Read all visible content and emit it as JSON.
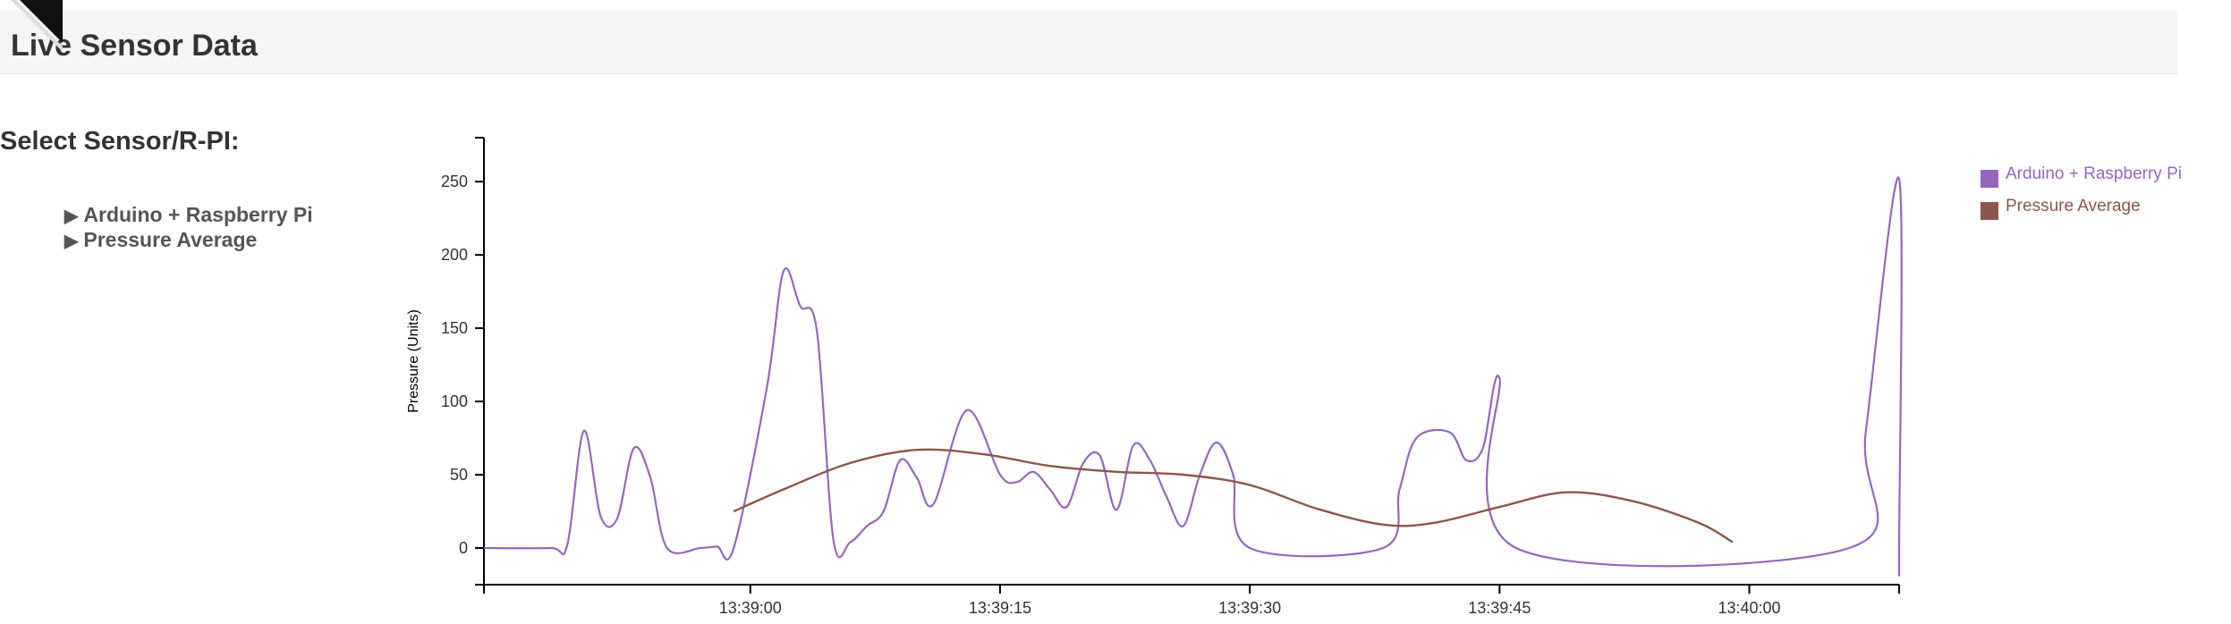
{
  "header": {
    "title": "Live Sensor Data"
  },
  "sidebar": {
    "title": "Select Sensor/R-PI:",
    "items": [
      {
        "label": "Arduino + Raspberry Pi"
      },
      {
        "label": "Pressure Average"
      }
    ]
  },
  "colors": {
    "arduino": "#9467bd",
    "average": "#8c564b"
  },
  "chart_data": {
    "type": "line",
    "title": "",
    "xlabel": "",
    "ylabel": "Pressure (Units)",
    "xlim": [
      "13:38:44",
      "13:40:09"
    ],
    "ylim": [
      -25,
      280
    ],
    "y_ticks": [
      0,
      50,
      100,
      150,
      200,
      250
    ],
    "x_ticks": [
      "13:39:00",
      "13:39:15",
      "13:39:30",
      "13:39:45",
      "13:40:00"
    ],
    "legend_position": "top-right",
    "series": [
      {
        "name": "Arduino + Raspberry Pi",
        "color": "#9467bd",
        "points": [
          [
            "13:38:44",
            0
          ],
          [
            "13:38:48",
            0
          ],
          [
            "13:38:49",
            2
          ],
          [
            "13:38:50",
            80
          ],
          [
            "13:38:51",
            22
          ],
          [
            "13:38:52",
            20
          ],
          [
            "13:38:53",
            68
          ],
          [
            "13:38:54",
            48
          ],
          [
            "13:38:55",
            0
          ],
          [
            "13:38:57",
            0
          ],
          [
            "13:38:58",
            1
          ],
          [
            "13:38:59",
            0
          ],
          [
            "13:39:01",
            110
          ],
          [
            "13:39:02",
            189
          ],
          [
            "13:39:03",
            165
          ],
          [
            "13:39:04",
            148
          ],
          [
            "13:39:05",
            5
          ],
          [
            "13:39:06",
            4
          ],
          [
            "13:39:07",
            15
          ],
          [
            "13:39:08",
            25
          ],
          [
            "13:39:09",
            60
          ],
          [
            "13:39:10",
            48
          ],
          [
            "13:39:11",
            30
          ],
          [
            "13:39:13",
            94
          ],
          [
            "13:39:15",
            50
          ],
          [
            "13:39:16",
            45
          ],
          [
            "13:39:17",
            52
          ],
          [
            "13:39:18",
            40
          ],
          [
            "13:39:19",
            28
          ],
          [
            "13:39:20",
            58
          ],
          [
            "13:39:21",
            63
          ],
          [
            "13:39:22",
            26
          ],
          [
            "13:39:23",
            70
          ],
          [
            "13:39:24",
            60
          ],
          [
            "13:39:25",
            35
          ],
          [
            "13:39:26",
            15
          ],
          [
            "13:39:27",
            50
          ],
          [
            "13:39:28",
            72
          ],
          [
            "13:39:29",
            50
          ],
          [
            "13:39:30",
            0
          ],
          [
            "13:39:38",
            0
          ],
          [
            "13:39:39",
            40
          ],
          [
            "13:39:40",
            75
          ],
          [
            "13:39:42",
            79
          ],
          [
            "13:39:43",
            60
          ],
          [
            "13:39:44",
            68
          ],
          [
            "13:39:45",
            116
          ],
          [
            "13:39:46",
            0
          ],
          [
            "13:40:06",
            0
          ],
          [
            "13:40:07",
            80
          ],
          [
            "13:40:09",
            252
          ],
          [
            "13:40:10",
            0
          ],
          [
            "13:40:13",
            0
          ]
        ]
      },
      {
        "name": "Pressure Average",
        "color": "#8c564b",
        "points": [
          [
            "13:38:59",
            25
          ],
          [
            "13:39:02",
            40
          ],
          [
            "13:39:06",
            58
          ],
          [
            "13:39:10",
            67
          ],
          [
            "13:39:14",
            64
          ],
          [
            "13:39:18",
            56
          ],
          [
            "13:39:22",
            52
          ],
          [
            "13:39:26",
            50
          ],
          [
            "13:39:30",
            43
          ],
          [
            "13:39:34",
            27
          ],
          [
            "13:39:38",
            16
          ],
          [
            "13:39:41",
            17
          ],
          [
            "13:39:45",
            28
          ],
          [
            "13:39:49",
            38
          ],
          [
            "13:39:53",
            32
          ],
          [
            "13:39:57",
            17
          ],
          [
            "13:39:59",
            4
          ]
        ]
      }
    ]
  }
}
